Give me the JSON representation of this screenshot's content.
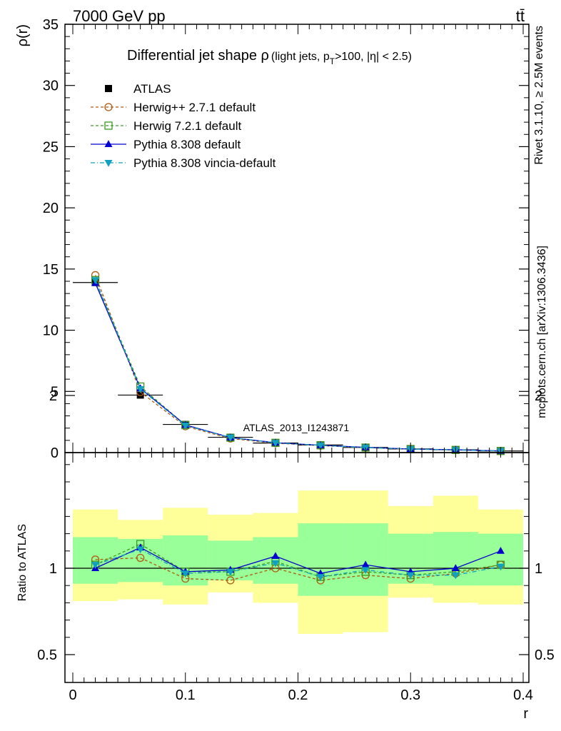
{
  "header": {
    "left": "7000 GeV pp",
    "right": "tt̄"
  },
  "side_labels": {
    "rivet": "Rivet 3.1.10, ≥ 2.5M events",
    "mcplots": "mcplots.cern.ch [arXiv:1306.3436]"
  },
  "chart_data": [
    {
      "type": "line",
      "title": "Differential jet shape ρ",
      "title_suffix": "(light jets, p",
      "title_sub": "T",
      "title_rest": ">100, |η| < 2.5)",
      "ylabel": "ρ(r)",
      "xlabel": "",
      "watermark": "ATLAS_2013_I1243871",
      "xlim": [
        0,
        0.4
      ],
      "ylim": [
        0,
        35
      ],
      "yticks": [
        0,
        5,
        10,
        15,
        20,
        25,
        30,
        35
      ],
      "ytick_labels": [
        "0",
        "5",
        "10",
        "15",
        "20",
        "25",
        "30",
        "35"
      ],
      "x": [
        0.02,
        0.06,
        0.1,
        0.14,
        0.18,
        0.22,
        0.26,
        0.3,
        0.34,
        0.38
      ],
      "xerr": 0.02,
      "legend_position": "top-left",
      "series": [
        {
          "name": "ATLAS",
          "color": "#000000",
          "marker": "square-filled",
          "dash": "none",
          "values": [
            13.9,
            4.7,
            2.3,
            1.25,
            0.78,
            0.62,
            0.42,
            0.3,
            0.23,
            0.13
          ]
        },
        {
          "name": "Herwig++ 2.7.1 default",
          "color": "#b05a10",
          "marker": "circle-open",
          "dash": "4,3",
          "values": [
            14.5,
            4.95,
            2.15,
            1.15,
            0.77,
            0.57,
            0.4,
            0.28,
            0.22,
            0.13
          ]
        },
        {
          "name": "Herwig 7.2.1 default",
          "color": "#3c9a20",
          "marker": "square-open",
          "dash": "4,3",
          "values": [
            14.1,
            5.4,
            2.25,
            1.22,
            0.8,
            0.6,
            0.41,
            0.29,
            0.22,
            0.13
          ]
        },
        {
          "name": "Pythia 8.308 default",
          "color": "#0000d0",
          "marker": "triangle-up",
          "dash": "none",
          "values": [
            13.85,
            5.25,
            2.26,
            1.23,
            0.81,
            0.6,
            0.43,
            0.29,
            0.23,
            0.14
          ]
        },
        {
          "name": "Pythia 8.308 vincia-default",
          "color": "#10a0c0",
          "marker": "triangle-down",
          "dash": "6,3,1,3",
          "values": [
            14.1,
            5.2,
            2.22,
            1.23,
            0.8,
            0.59,
            0.41,
            0.29,
            0.22,
            0.13
          ]
        }
      ]
    },
    {
      "type": "line",
      "ylabel": "Ratio to ATLAS",
      "xlabel": "r",
      "xlim": [
        0,
        0.4
      ],
      "ylim": [
        0.4,
        2.3
      ],
      "yticks": [
        0.5,
        1,
        2
      ],
      "ytick_labels": [
        "0.5",
        "1",
        "2"
      ],
      "xticks": [
        0,
        0.1,
        0.2,
        0.3,
        0.4
      ],
      "xtick_labels": [
        "0",
        "0.1",
        "0.2",
        "0.3",
        "0.4"
      ],
      "x": [
        0.02,
        0.06,
        0.1,
        0.14,
        0.18,
        0.22,
        0.26,
        0.3,
        0.34,
        0.38
      ],
      "bands": {
        "yellow": {
          "color": "#ffff99",
          "lo": [
            0.81,
            0.82,
            0.79,
            0.86,
            0.8,
            0.62,
            0.63,
            0.83,
            0.8,
            0.79
          ],
          "hi": [
            1.34,
            1.28,
            1.35,
            1.31,
            1.32,
            1.45,
            1.45,
            1.36,
            1.42,
            1.34
          ]
        },
        "green": {
          "color": "#99ff99",
          "lo": [
            0.91,
            0.92,
            0.9,
            0.93,
            0.91,
            0.84,
            0.84,
            0.91,
            0.9,
            0.9
          ],
          "hi": [
            1.18,
            1.17,
            1.19,
            1.16,
            1.18,
            1.26,
            1.26,
            1.2,
            1.21,
            1.2
          ]
        }
      },
      "series": [
        {
          "name": "Herwig++ 2.7.1 default",
          "color": "#b05a10",
          "marker": "circle-open",
          "dash": "4,3",
          "values": [
            1.05,
            1.06,
            0.94,
            0.93,
            1.0,
            0.93,
            0.96,
            0.94,
            0.97,
            1.02
          ]
        },
        {
          "name": "Herwig 7.2.1 default",
          "color": "#3c9a20",
          "marker": "square-open",
          "dash": "4,3",
          "values": [
            1.02,
            1.14,
            0.98,
            0.98,
            1.04,
            0.95,
            0.98,
            0.96,
            0.98,
            1.02
          ]
        },
        {
          "name": "Pythia 8.308 default",
          "color": "#0000d0",
          "marker": "triangle-up",
          "dash": "none",
          "values": [
            1.0,
            1.12,
            0.98,
            0.99,
            1.07,
            0.97,
            1.02,
            0.98,
            1.0,
            1.1
          ]
        },
        {
          "name": "Pythia 8.308 vincia-default",
          "color": "#10a0c0",
          "marker": "triangle-down",
          "dash": "6,3,1,3",
          "values": [
            1.02,
            1.11,
            0.97,
            0.98,
            1.03,
            0.95,
            0.99,
            0.96,
            0.96,
            1.01
          ]
        }
      ]
    }
  ]
}
